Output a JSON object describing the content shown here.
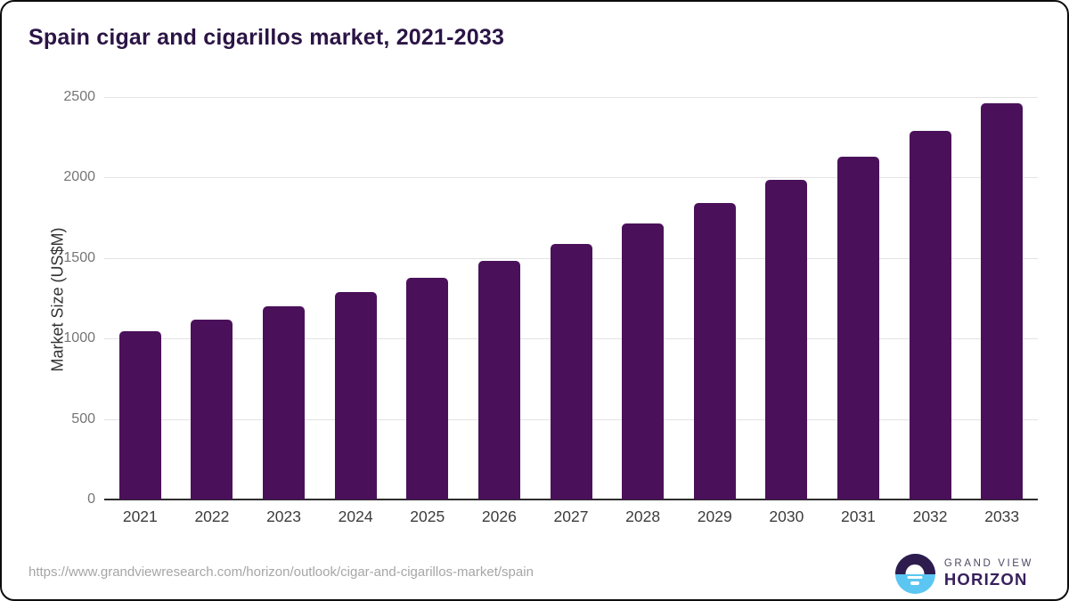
{
  "header": {
    "title": "Spain cigar and cigarillos market, 2021-2033"
  },
  "chart_data": {
    "type": "bar",
    "title": "Spain cigar and cigarillos market, 2021-2033",
    "categories": [
      "2021",
      "2022",
      "2023",
      "2024",
      "2025",
      "2026",
      "2027",
      "2028",
      "2029",
      "2030",
      "2031",
      "2032",
      "2033"
    ],
    "values": [
      1043,
      1120,
      1200,
      1288,
      1380,
      1485,
      1590,
      1715,
      1840,
      1985,
      2130,
      2292,
      2462
    ],
    "xlabel": "",
    "ylabel": "Market Size (US$M)",
    "ylim": [
      0,
      2500
    ],
    "yticks": [
      0,
      500,
      1000,
      1500,
      2000,
      2500
    ],
    "grid": "horizontal",
    "legend": "none",
    "bar_color": "#4a115a"
  },
  "footer": {
    "source_url": "https://www.grandviewresearch.com/horizon/outlook/cigar-and-cigarillos-market/spain",
    "logo": {
      "brand_top": "GRAND VIEW",
      "brand_bottom": "HORIZON"
    }
  },
  "colors": {
    "bar": "#4a115a",
    "title_text": "#2b1445",
    "gridline": "#e3e3e3",
    "axis_line": "#2e2e2e",
    "y_tick_text": "#757575",
    "x_tick_text": "#3c3c3c",
    "url_text": "#a6a6a6",
    "logo_dark": "#2e1c4e",
    "logo_blue": "#5bc6f2"
  }
}
